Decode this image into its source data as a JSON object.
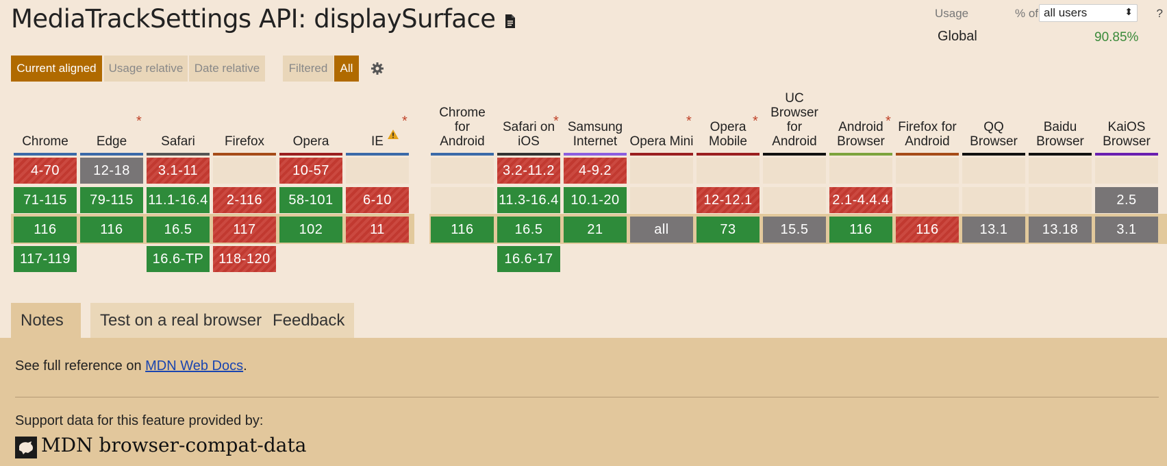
{
  "title": "MediaTrackSettings API: displaySurface",
  "usage": {
    "label": "Usage",
    "pct_of": "% of",
    "selector_value": "all users",
    "help": "?",
    "global_label": "Global",
    "global_value": "90.85%"
  },
  "toolbar": {
    "current_aligned": "Current aligned",
    "usage_relative": "Usage relative",
    "date_relative": "Date relative",
    "filtered": "Filtered",
    "all": "All"
  },
  "browsers": [
    {
      "name": "Chrome",
      "star": false,
      "bar": "#3b6aa8",
      "cells": [
        [
          "4-70",
          "red"
        ],
        [
          "71-115",
          "green"
        ],
        [
          "116",
          "green"
        ],
        [
          "117-119",
          "green"
        ]
      ]
    },
    {
      "name": "Edge",
      "star": true,
      "bar": "#3b6aa8",
      "cells": [
        [
          "12-18",
          "gray"
        ],
        [
          "79-115",
          "green"
        ],
        [
          "116",
          "green"
        ],
        [
          "",
          ""
        ]
      ]
    },
    {
      "name": "Safari",
      "star": false,
      "bar": "#555",
      "cells": [
        [
          "3.1-11",
          "red"
        ],
        [
          "11.1-16.4",
          "green"
        ],
        [
          "16.5",
          "green"
        ],
        [
          "16.6-TP",
          "green"
        ]
      ]
    },
    {
      "name": "Firefox",
      "star": false,
      "bar": "#a64b17",
      "cells": [
        [
          "",
          "empty"
        ],
        [
          "2-116",
          "red"
        ],
        [
          "117",
          "red"
        ],
        [
          "118-120",
          "red"
        ]
      ]
    },
    {
      "name": "Opera",
      "star": false,
      "bar": "#9a1f1f",
      "cells": [
        [
          "10-57",
          "red"
        ],
        [
          "58-101",
          "green"
        ],
        [
          "102",
          "green"
        ],
        [
          "",
          ""
        ]
      ]
    },
    {
      "name": "IE",
      "star": true,
      "warn": true,
      "bar": "#3b6aa8",
      "cells": [
        [
          "",
          "empty"
        ],
        [
          "6-10",
          "red"
        ],
        [
          "11",
          "red"
        ],
        [
          "",
          ""
        ]
      ]
    },
    {
      "name": "Chrome for Android",
      "star": false,
      "bar": "#3b6aa8",
      "cells": [
        [
          "",
          "empty"
        ],
        [
          "",
          "empty"
        ],
        [
          "116",
          "green"
        ],
        [
          "",
          ""
        ]
      ]
    },
    {
      "name": "Safari on iOS",
      "star": true,
      "bar": "#333",
      "cells": [
        [
          "3.2-11.2",
          "red"
        ],
        [
          "11.3-16.4",
          "green"
        ],
        [
          "16.5",
          "green"
        ],
        [
          "16.6-17",
          "green"
        ]
      ]
    },
    {
      "name": "Samsung Internet",
      "star": false,
      "bar": "#8c5fe0",
      "cells": [
        [
          "4-9.2",
          "red"
        ],
        [
          "10.1-20",
          "green"
        ],
        [
          "21",
          "green"
        ],
        [
          "",
          ""
        ]
      ]
    },
    {
      "name": "Opera Mini",
      "star": true,
      "bar": "#9a1f1f",
      "cells": [
        [
          "",
          "empty"
        ],
        [
          "",
          "empty"
        ],
        [
          "all",
          "gray"
        ],
        [
          "",
          ""
        ]
      ]
    },
    {
      "name": "Opera Mobile",
      "star": true,
      "bar": "#9a1f1f",
      "cells": [
        [
          "",
          "empty"
        ],
        [
          "12-12.1",
          "red"
        ],
        [
          "73",
          "green"
        ],
        [
          "",
          ""
        ]
      ]
    },
    {
      "name": "UC Browser for Android",
      "star": false,
      "bar": "#111",
      "cells": [
        [
          "",
          "empty"
        ],
        [
          "",
          "empty"
        ],
        [
          "15.5",
          "gray"
        ],
        [
          "",
          ""
        ]
      ]
    },
    {
      "name": "Android Browser",
      "star": true,
      "bar": "#7ca33c",
      "cells": [
        [
          "",
          "empty"
        ],
        [
          "2.1-4.4.4",
          "red"
        ],
        [
          "116",
          "green"
        ],
        [
          "",
          ""
        ]
      ]
    },
    {
      "name": "Firefox for Android",
      "star": false,
      "bar": "#a64b17",
      "cells": [
        [
          "",
          "empty"
        ],
        [
          "",
          "empty"
        ],
        [
          "116",
          "red"
        ],
        [
          "",
          ""
        ]
      ]
    },
    {
      "name": "QQ Browser",
      "star": false,
      "bar": "#111",
      "cells": [
        [
          "",
          "empty"
        ],
        [
          "",
          "empty"
        ],
        [
          "13.1",
          "gray"
        ],
        [
          "",
          ""
        ]
      ]
    },
    {
      "name": "Baidu Browser",
      "star": false,
      "bar": "#111",
      "cells": [
        [
          "",
          "empty"
        ],
        [
          "",
          "empty"
        ],
        [
          "13.18",
          "gray"
        ],
        [
          "",
          ""
        ]
      ]
    },
    {
      "name": "KaiOS Browser",
      "star": false,
      "bar": "#6a1fb0",
      "cells": [
        [
          "",
          "empty"
        ],
        [
          "2.5",
          "gray"
        ],
        [
          "3.1",
          "gray"
        ],
        [
          "",
          ""
        ]
      ]
    }
  ],
  "tabs": {
    "notes": "Notes",
    "test": "Test on a real browser",
    "feedback": "Feedback"
  },
  "notes": {
    "ref_prefix": "See full reference on ",
    "ref_link": "MDN Web Docs",
    "ref_suffix": ".",
    "support_text": "Support data for this feature provided by:",
    "mdn_label": "MDN browser-compat-data"
  }
}
